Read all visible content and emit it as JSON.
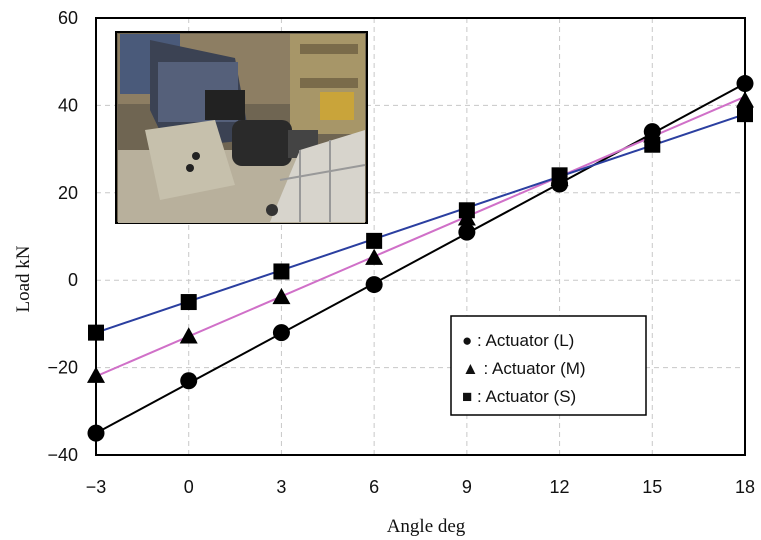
{
  "chart_data": {
    "type": "line",
    "title": "",
    "xlabel": "Angle deg",
    "ylabel": "Load  kN",
    "x": [
      -3,
      0,
      3,
      6,
      9,
      12,
      15,
      18
    ],
    "x_ticks": [
      "-3",
      "0",
      "3",
      "6",
      "9",
      "12",
      "15",
      "18"
    ],
    "y_ticks": [
      "60",
      "40",
      "20",
      "0",
      "-20",
      "-40"
    ],
    "xlim": [
      -3,
      18
    ],
    "ylim": [
      -40,
      60
    ],
    "grid": true,
    "legend_position": "bottom-right",
    "inset": "photo of actuator test rig",
    "series": [
      {
        "name": "● : Actuator  (L)",
        "marker": "circle",
        "color": "#000000",
        "values": [
          -35,
          -23,
          -12,
          -1,
          11,
          22,
          34,
          45
        ],
        "fit": [
          -35,
          45
        ]
      },
      {
        "name": "▲ : Actuator  (M)",
        "marker": "triangle",
        "color": "#d070c8",
        "values": [
          -22,
          -13,
          -4,
          5,
          14,
          23,
          33,
          41
        ],
        "fit": [
          -22,
          42
        ]
      },
      {
        "name": "■ : Actuator  (S)",
        "marker": "square",
        "color": "#2b3fa0",
        "values": [
          -12,
          -5,
          2,
          9,
          16,
          24,
          31,
          38
        ],
        "fit": [
          -12,
          38
        ]
      }
    ]
  }
}
